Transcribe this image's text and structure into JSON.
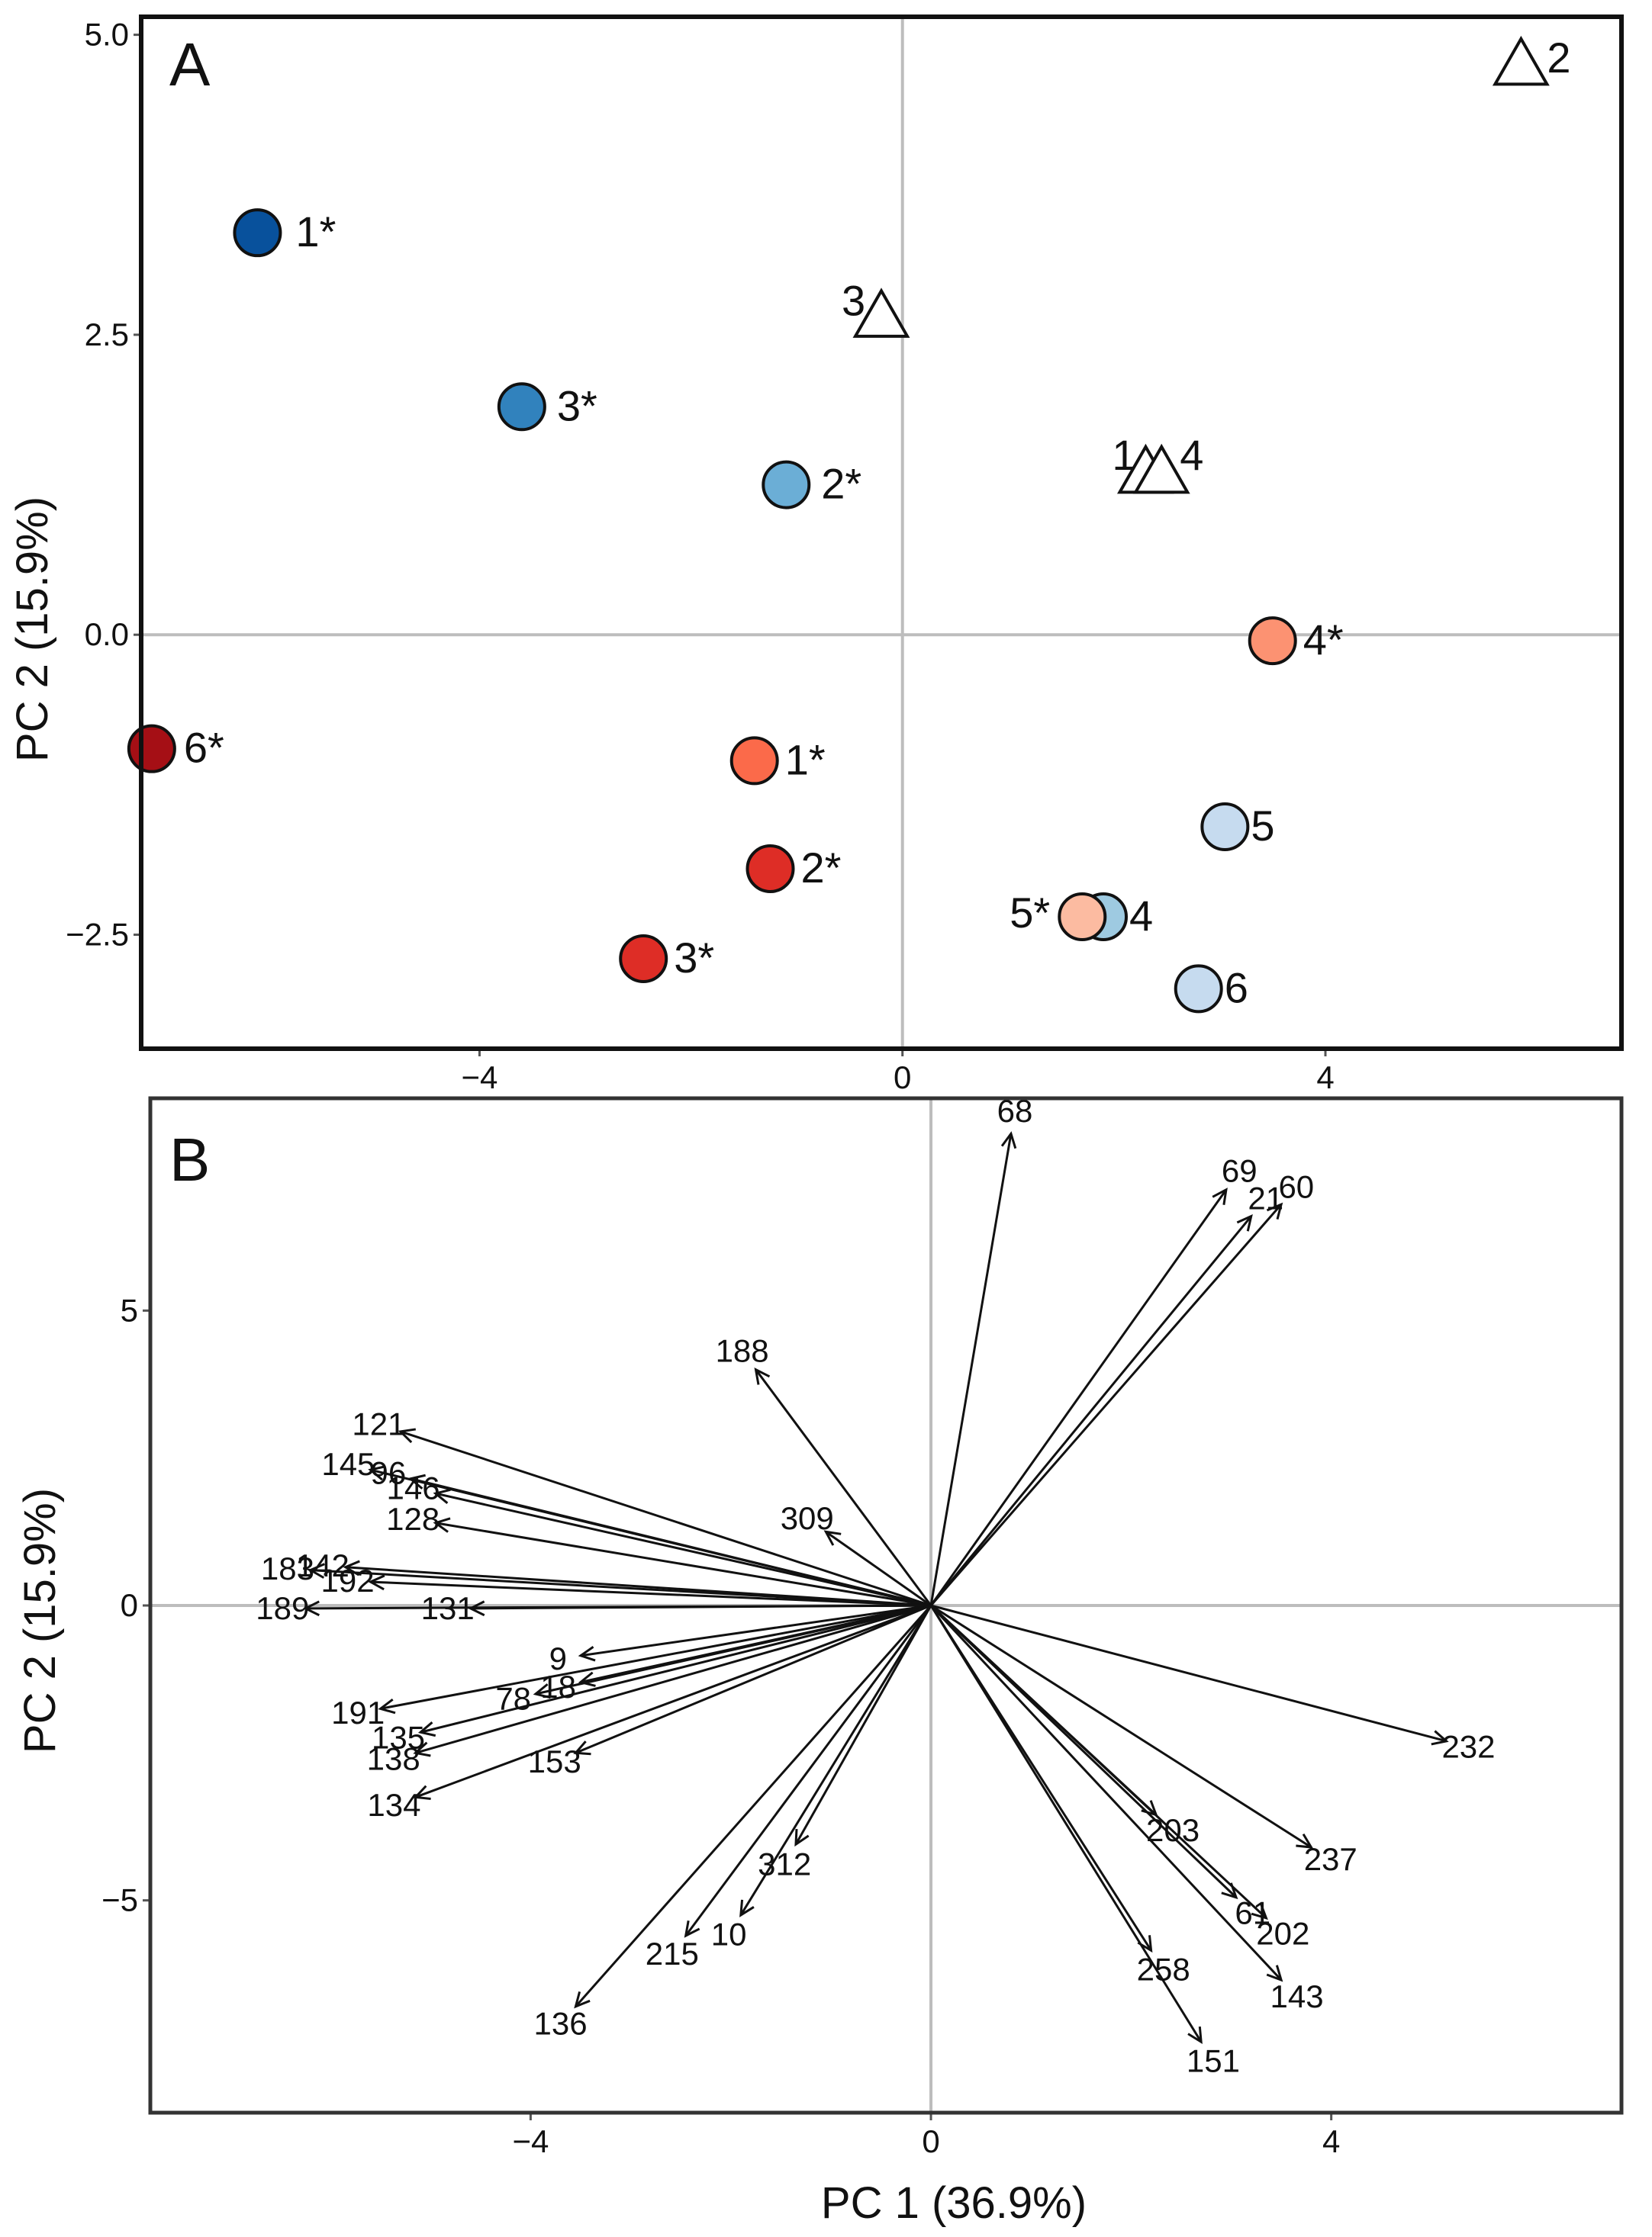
{
  "chart_data": [
    {
      "type": "scatter",
      "panel": "A",
      "xlabel": "PC 1 (36.9%)",
      "ylabel": "PC 2 (15.9%)",
      "xlim": [
        -7.2,
        6.8
      ],
      "ylim": [
        -3.45,
        5.15
      ],
      "x_ticks": [
        {
          "v": -4,
          "label": "−4"
        },
        {
          "v": 0,
          "label": "0"
        },
        {
          "v": 4,
          "label": "4"
        }
      ],
      "y_ticks": [
        {
          "v": 5.0,
          "label": "5.0"
        },
        {
          "v": 2.5,
          "label": "2.5"
        },
        {
          "v": 0.0,
          "label": "0.0"
        },
        {
          "v": -2.5,
          "label": "−2.5"
        }
      ],
      "zero_lines": true,
      "points": [
        {
          "label": "1*",
          "x": -6.1,
          "y": 3.35,
          "shape": "circle",
          "color": "#08519c"
        },
        {
          "label": "3*",
          "x": -3.6,
          "y": 1.9,
          "shape": "circle",
          "color": "#3182bd"
        },
        {
          "label": "2*",
          "x": -1.1,
          "y": 1.25,
          "shape": "circle",
          "color": "#6baed6"
        },
        {
          "label": "6*",
          "x": -7.1,
          "y": -0.95,
          "shape": "circle",
          "color": "#a50f15"
        },
        {
          "label": "1*",
          "x": -1.4,
          "y": -1.05,
          "shape": "circle",
          "color": "#fb6a4a"
        },
        {
          "label": "2*",
          "x": -1.25,
          "y": -1.95,
          "shape": "circle",
          "color": "#de2d26"
        },
        {
          "label": "3*",
          "x": -2.45,
          "y": -2.7,
          "shape": "circle",
          "color": "#de2d26"
        },
        {
          "label": "4*",
          "x": 3.5,
          "y": -0.05,
          "shape": "circle",
          "color": "#fc9272"
        },
        {
          "label": "5",
          "x": 3.05,
          "y": -1.6,
          "shape": "circle",
          "color": "#c6dbef"
        },
        {
          "label": "4",
          "x": 1.9,
          "y": -2.35,
          "shape": "circle",
          "color": "#9ecae1"
        },
        {
          "label": "5*",
          "x": 1.7,
          "y": -2.35,
          "shape": "circle",
          "color": "#fcbba1"
        },
        {
          "label": "6",
          "x": 2.8,
          "y": -2.95,
          "shape": "circle",
          "color": "#c6dbef"
        },
        {
          "label": "2",
          "x": 5.85,
          "y": 4.75,
          "shape": "triangle",
          "color": "#ffffff"
        },
        {
          "label": "3",
          "x": -0.2,
          "y": 2.65,
          "shape": "triangle",
          "color": "#ffffff"
        },
        {
          "label": "1",
          "x": 2.3,
          "y": 1.35,
          "shape": "triangle",
          "color": "#ffffff"
        },
        {
          "label": "4",
          "x": 2.45,
          "y": 1.35,
          "shape": "triangle",
          "color": "#ffffff"
        }
      ]
    },
    {
      "type": "biplot",
      "panel": "B",
      "xlabel": "PC 1 (36.9%)",
      "ylabel": "PC 2 (15.9%)",
      "xlim": [
        -7.8,
        6.9
      ],
      "ylim": [
        -8.6,
        8.6
      ],
      "x_ticks": [
        {
          "v": -4,
          "label": "−4"
        },
        {
          "v": 0,
          "label": "0"
        },
        {
          "v": 4,
          "label": "4"
        }
      ],
      "y_ticks": [
        {
          "v": 5,
          "label": "5"
        },
        {
          "v": 0,
          "label": "0"
        },
        {
          "v": -5,
          "label": "−5"
        }
      ],
      "zero_lines": true,
      "vectors": [
        {
          "label": "68",
          "x": 0.8,
          "y": 8.0
        },
        {
          "label": "69",
          "x": 2.95,
          "y": 7.05
        },
        {
          "label": "21",
          "x": 3.2,
          "y": 6.6
        },
        {
          "label": "60",
          "x": 3.5,
          "y": 6.8
        },
        {
          "label": "188",
          "x": -1.75,
          "y": 4.0
        },
        {
          "label": "309",
          "x": -1.05,
          "y": 1.25
        },
        {
          "label": "121",
          "x": -5.3,
          "y": 2.95
        },
        {
          "label": "145",
          "x": -5.6,
          "y": 2.3
        },
        {
          "label": "96",
          "x": -5.2,
          "y": 2.15
        },
        {
          "label": "146",
          "x": -4.95,
          "y": 1.9
        },
        {
          "label": "128",
          "x": -4.95,
          "y": 1.4
        },
        {
          "label": "142",
          "x": -5.85,
          "y": 0.65
        },
        {
          "label": "192",
          "x": -5.6,
          "y": 0.4
        },
        {
          "label": "183",
          "x": -6.2,
          "y": 0.6
        },
        {
          "label": "189",
          "x": -6.25,
          "y": -0.05
        },
        {
          "label": "131",
          "x": -4.6,
          "y": -0.05
        },
        {
          "label": "9",
          "x": -3.5,
          "y": -0.85
        },
        {
          "label": "18",
          "x": -3.5,
          "y": -1.3
        },
        {
          "label": "78",
          "x": -3.95,
          "y": -1.5
        },
        {
          "label": "191",
          "x": -5.5,
          "y": -1.75
        },
        {
          "label": "135",
          "x": -5.1,
          "y": -2.15
        },
        {
          "label": "138",
          "x": -5.15,
          "y": -2.5
        },
        {
          "label": "134",
          "x": -5.15,
          "y": -3.25
        },
        {
          "label": "153",
          "x": -3.55,
          "y": -2.5
        },
        {
          "label": "312",
          "x": -1.35,
          "y": -4.05
        },
        {
          "label": "10",
          "x": -1.9,
          "y": -5.25
        },
        {
          "label": "215",
          "x": -2.45,
          "y": -5.6
        },
        {
          "label": "136",
          "x": -3.55,
          "y": -6.8
        },
        {
          "label": "232",
          "x": 5.15,
          "y": -2.3
        },
        {
          "label": "203",
          "x": 2.25,
          "y": -3.55
        },
        {
          "label": "237",
          "x": 3.8,
          "y": -4.1
        },
        {
          "label": "61",
          "x": 3.05,
          "y": -4.95
        },
        {
          "label": "202",
          "x": 3.35,
          "y": -5.3
        },
        {
          "label": "258",
          "x": 2.2,
          "y": -5.85
        },
        {
          "label": "143",
          "x": 3.5,
          "y": -6.35
        },
        {
          "label": "151",
          "x": 2.7,
          "y": -7.4
        }
      ]
    }
  ],
  "panels": {
    "a_label": "A",
    "b_label": "B"
  }
}
